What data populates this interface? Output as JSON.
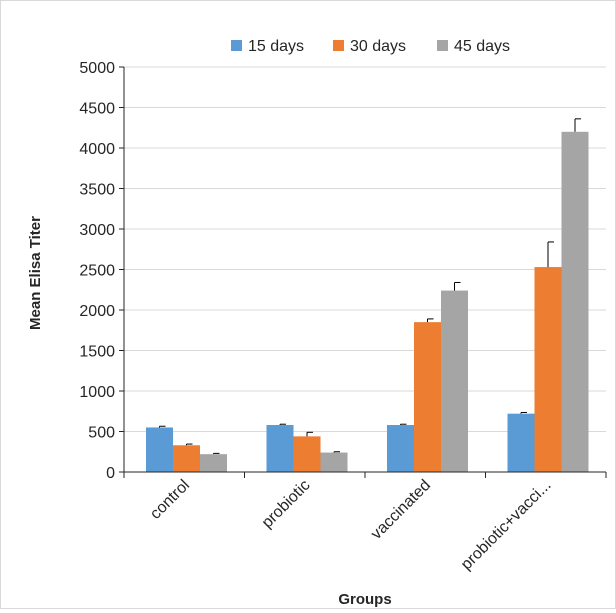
{
  "chart_data": {
    "type": "bar",
    "title": "",
    "xlabel": "Groups",
    "ylabel": "Mean Elisa Titer",
    "ylim": [
      0,
      5000
    ],
    "yticks": [
      0,
      500,
      1000,
      1500,
      2000,
      2500,
      3000,
      3500,
      4000,
      4500,
      5000
    ],
    "grid": true,
    "legend_position": "top",
    "categories": [
      "control",
      "probiotic",
      "vaccinated",
      "probiotic+vacci..."
    ],
    "series": [
      {
        "name": "15 days",
        "color": "#5b9bd5",
        "values": [
          550,
          580,
          580,
          720
        ],
        "errors": [
          15,
          10,
          10,
          15
        ]
      },
      {
        "name": "30 days",
        "color": "#ed7d31",
        "values": [
          330,
          440,
          1850,
          2530
        ],
        "errors": [
          15,
          50,
          40,
          310
        ]
      },
      {
        "name": "45 days",
        "color": "#a5a5a5",
        "values": [
          220,
          240,
          2240,
          4200
        ],
        "errors": [
          10,
          10,
          100,
          160
        ]
      }
    ]
  }
}
